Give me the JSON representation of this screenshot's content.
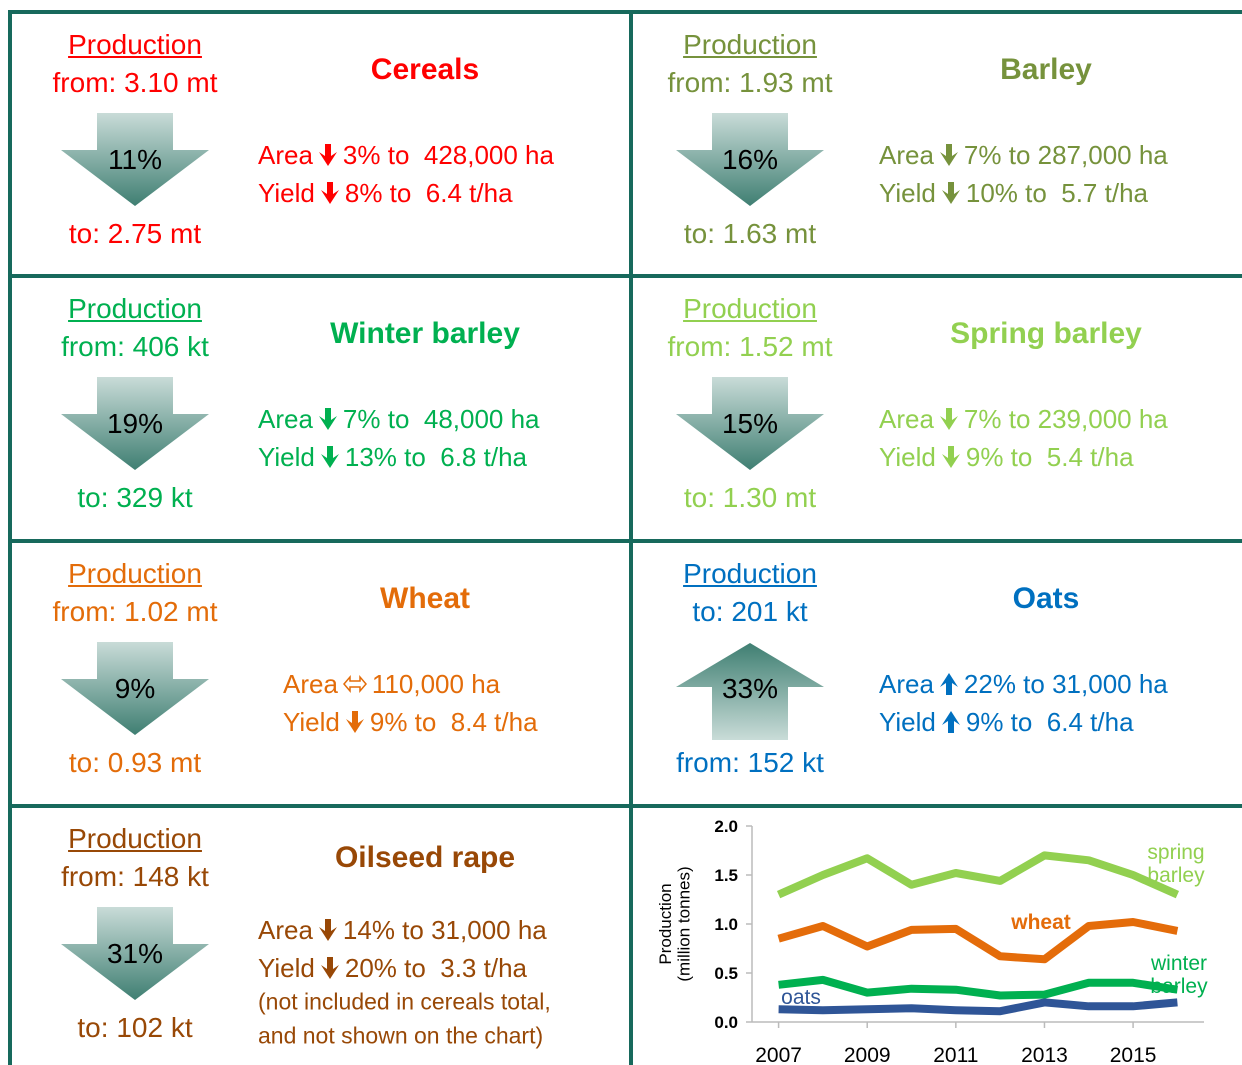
{
  "panels": [
    {
      "color": "#ff0000",
      "production": "Production",
      "top": "from: 3.10 mt",
      "pct": "11%",
      "bottom": "to: 2.75 mt",
      "direction": "down",
      "name": "Cereals",
      "area_label": "Area",
      "area_icon": "down",
      "area_text": "3% to  428,000 ha",
      "yield_label": "Yield",
      "yield_icon": "down",
      "yield_text": "8% to  6.4 t/ha"
    },
    {
      "color": "#76923c",
      "production": "Production",
      "top": "from: 1.93 mt",
      "pct": "16%",
      "bottom": "to: 1.63 mt",
      "direction": "down",
      "name": "Barley",
      "area_label": "Area",
      "area_icon": "down",
      "area_text": "7% to 287,000 ha",
      "yield_label": "Yield",
      "yield_icon": "down",
      "yield_text": "10% to  5.7 t/ha"
    },
    {
      "color": "#00b050",
      "production": "Production",
      "top": "from: 406 kt",
      "pct": "19%",
      "bottom": "to: 329 kt",
      "direction": "down",
      "name": "Winter barley",
      "area_label": "Area",
      "area_icon": "down",
      "area_text": "7% to  48,000 ha",
      "yield_label": "Yield",
      "yield_icon": "down",
      "yield_text": "13% to  6.8 t/ha"
    },
    {
      "color": "#92d050",
      "production": "Production",
      "top": "from: 1.52 mt",
      "pct": "15%",
      "bottom": "to: 1.30 mt",
      "direction": "down",
      "name": "Spring barley",
      "area_label": "Area",
      "area_icon": "down",
      "area_text": "7% to 239,000 ha",
      "yield_label": "Yield",
      "yield_icon": "down",
      "yield_text": "9% to  5.4 t/ha"
    },
    {
      "color": "#e36c09",
      "production": "Production",
      "top": "from: 1.02 mt",
      "pct": "9%",
      "bottom": "to: 0.93 mt",
      "direction": "down",
      "name": "Wheat",
      "area_label": "Area",
      "area_icon": "same",
      "area_text": "110,000 ha",
      "yield_label": "Yield",
      "yield_icon": "down",
      "yield_text": "9% to  8.4 t/ha"
    },
    {
      "color": "#0070c0",
      "production": "Production",
      "top": "to: 201 kt",
      "pct": "33%",
      "bottom": "from: 152 kt",
      "direction": "up",
      "name": "Oats",
      "area_label": "Area",
      "area_icon": "up",
      "area_text": "22% to 31,000 ha",
      "yield_label": "Yield",
      "yield_icon": "up",
      "yield_text": "9% to  6.4 t/ha"
    },
    {
      "color": "#984806",
      "production": "Production",
      "top": "from: 148 kt",
      "pct": "31%",
      "bottom": "to: 102 kt",
      "direction": "down",
      "name": "Oilseed rape",
      "area_label": "Area",
      "area_icon": "down",
      "area_text": "14% to 31,000 ha",
      "yield_label": "Yield",
      "yield_icon": "down",
      "yield_text": "20% to  3.3 t/ha",
      "note": [
        "(not included in cereals total,",
        "and not shown on the chart)"
      ]
    }
  ],
  "chart_data": {
    "type": "line",
    "ylabel": "Production (million tonnes)",
    "x": [
      2007,
      2008,
      2009,
      2010,
      2011,
      2012,
      2013,
      2014,
      2015,
      2016
    ],
    "xlim": [
      2006.4,
      2016.6
    ],
    "xticks": [
      2007,
      2009,
      2011,
      2013,
      2015
    ],
    "ylim": [
      0,
      2
    ],
    "yticks": [
      {
        "value": 0,
        "label": "0.0"
      },
      0.5,
      {
        "value": 1,
        "label": "1.0"
      },
      1.5,
      {
        "value": 2,
        "label": "2.0"
      }
    ],
    "series": [
      {
        "name": "spring barley",
        "color": "#92d050",
        "values": [
          1.3,
          1.5,
          1.67,
          1.4,
          1.52,
          1.44,
          1.7,
          1.65,
          1.5,
          1.3
        ]
      },
      {
        "name": "wheat",
        "color": "#e46c0a",
        "values": [
          0.85,
          0.98,
          0.77,
          0.94,
          0.95,
          0.67,
          0.64,
          0.98,
          1.02,
          0.93
        ]
      },
      {
        "name": "winter barley",
        "color": "#00b050",
        "values": [
          0.38,
          0.43,
          0.3,
          0.34,
          0.33,
          0.27,
          0.28,
          0.4,
          0.4,
          0.33
        ]
      },
      {
        "name": "oats",
        "color": "#2f5597",
        "values": [
          0.13,
          0.12,
          0.13,
          0.14,
          0.12,
          0.11,
          0.2,
          0.16,
          0.16,
          0.2
        ]
      }
    ]
  }
}
